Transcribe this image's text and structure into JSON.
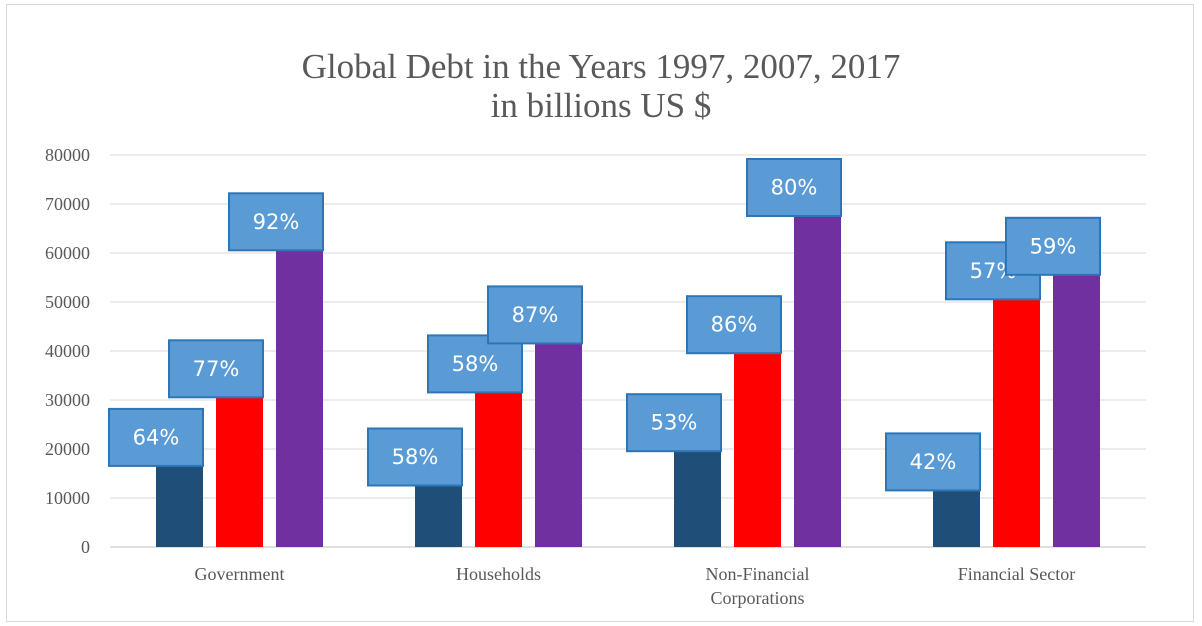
{
  "chart_data": {
    "type": "bar",
    "title": "Global Debt in the Years 1997, 2007, 2017",
    "subtitle": "in billions US $",
    "xlabel": "",
    "ylabel": "",
    "ylim": [
      0,
      80000
    ],
    "yticks": [
      "0",
      "10000",
      "20000",
      "30000",
      "40000",
      "50000",
      "60000",
      "70000",
      "80000"
    ],
    "grid": true,
    "categories": [
      [
        "Government"
      ],
      [
        "Households"
      ],
      [
        "Non-Financial",
        "Corporations"
      ],
      [
        "Financial Sector"
      ]
    ],
    "series": [
      {
        "color": "#1f4e79",
        "values": [
          19000,
          15000,
          22000,
          14000
        ],
        "labels": [
          "64%",
          "58%",
          "53%",
          "42%"
        ]
      },
      {
        "color": "#ff0000",
        "values": [
          33000,
          34000,
          42000,
          53000
        ],
        "labels": [
          "77%",
          "58%",
          "86%",
          "57%"
        ]
      },
      {
        "color": "#7030a0",
        "values": [
          63000,
          44000,
          70000,
          58000
        ],
        "labels": [
          "92%",
          "87%",
          "80%",
          "59%"
        ]
      }
    ],
    "label_box": {
      "fill": "#5b9bd5",
      "stroke": "#2e75b6"
    }
  }
}
